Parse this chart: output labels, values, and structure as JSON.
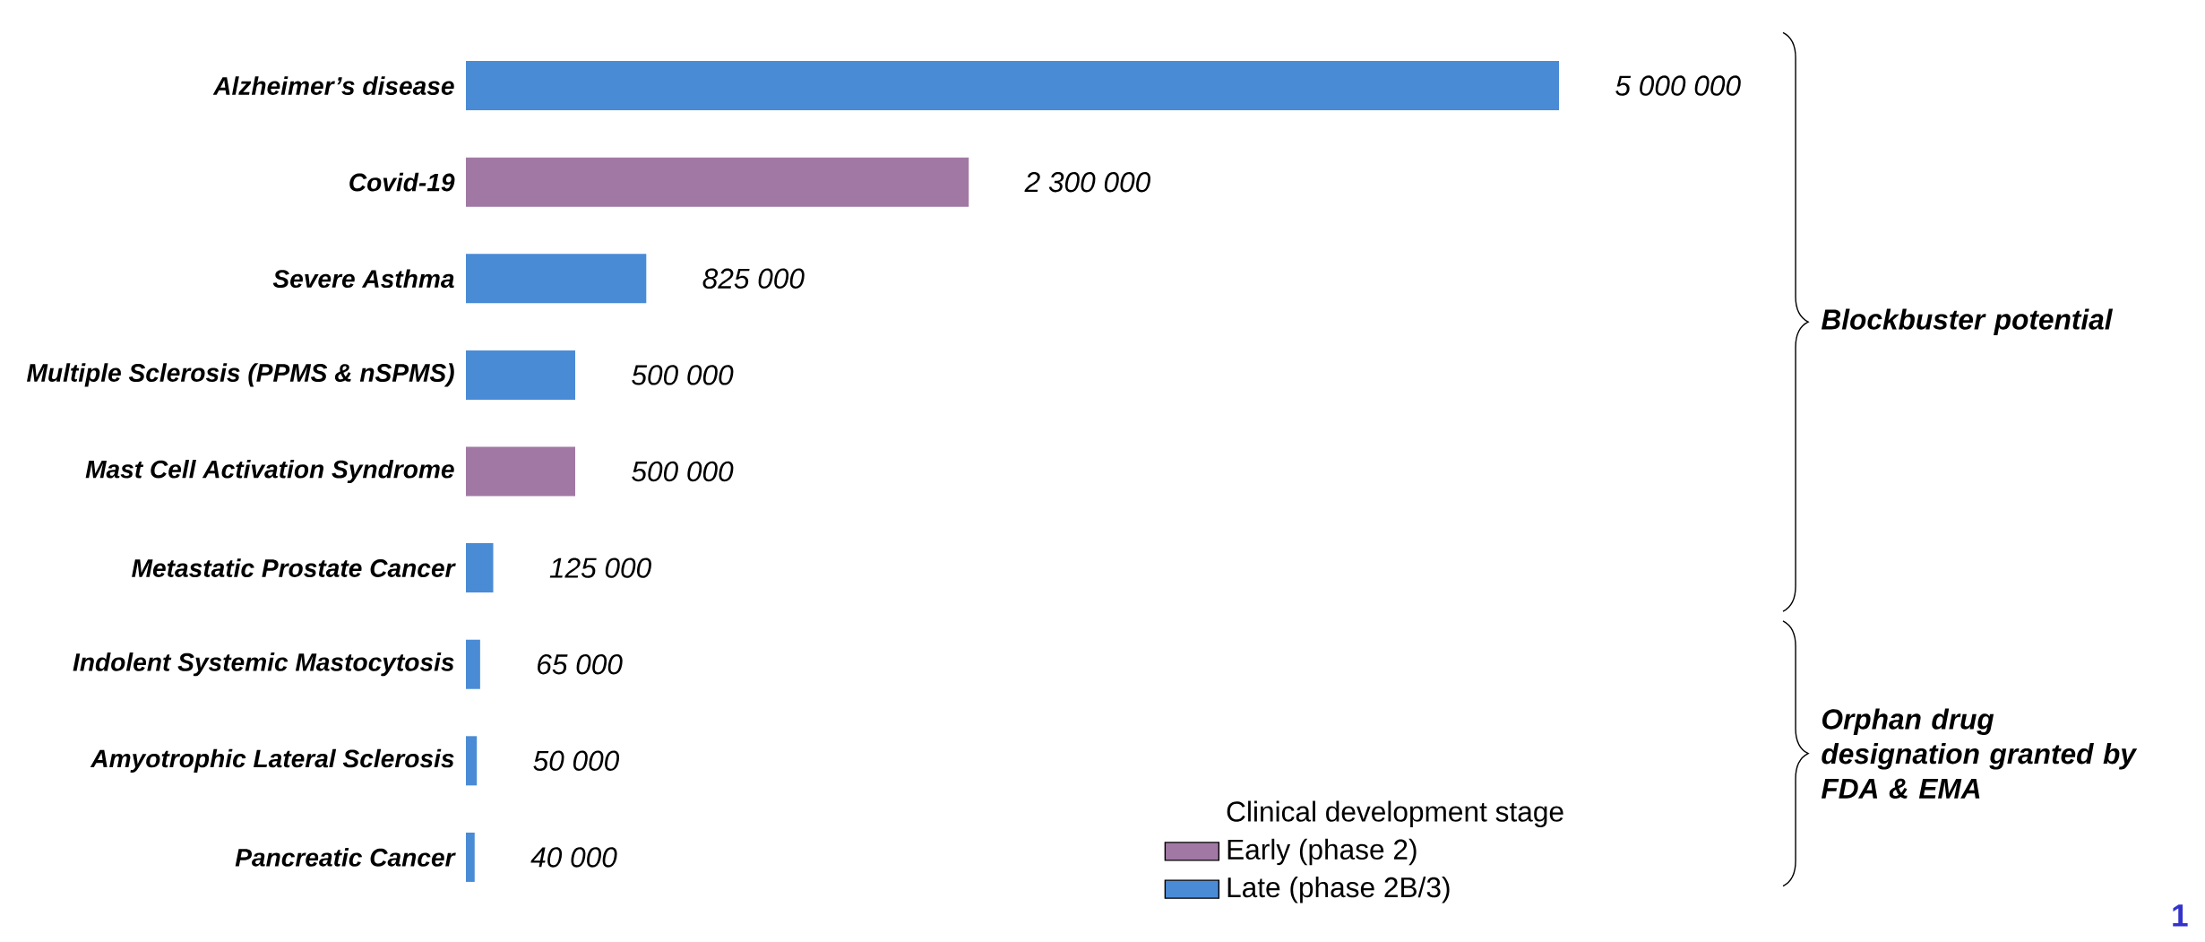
{
  "chart_data": {
    "type": "bar",
    "orientation": "horizontal",
    "categories": [
      "Alzheimer’s disease",
      "Covid-19",
      "Severe Asthma",
      "Multiple Sclerosis (PPMS & nSPMS)",
      "Mast Cell Activation Syndrome",
      "Metastatic Prostate Cancer",
      "Indolent Systemic Mastocytosis",
      "Amyotrophic Lateral Sclerosis",
      "Pancreatic Cancer"
    ],
    "series": [
      {
        "name": "Early (phase 2)",
        "color": "#a178a4",
        "values": [
          null,
          2300000,
          null,
          null,
          500000,
          null,
          null,
          null,
          null
        ],
        "value_labels": [
          null,
          "2 300 000",
          null,
          null,
          "500 000",
          null,
          null,
          null,
          null
        ]
      },
      {
        "name": "Late (phase 2B/3)",
        "color": "#4a8bd6",
        "values": [
          5000000,
          null,
          825000,
          500000,
          null,
          125000,
          65000,
          50000,
          40000
        ],
        "value_labels": [
          "5 000 000",
          null,
          "825 000",
          "500 000",
          null,
          "125 000",
          "65 000",
          "50 000",
          "40 000"
        ]
      }
    ],
    "legend_title": "Clinical development stage",
    "legend": "bottom right",
    "annotations": [
      "Blockbuster potential",
      "Orphan drug designation granted by FDA & EMA",
      "1"
    ]
  }
}
